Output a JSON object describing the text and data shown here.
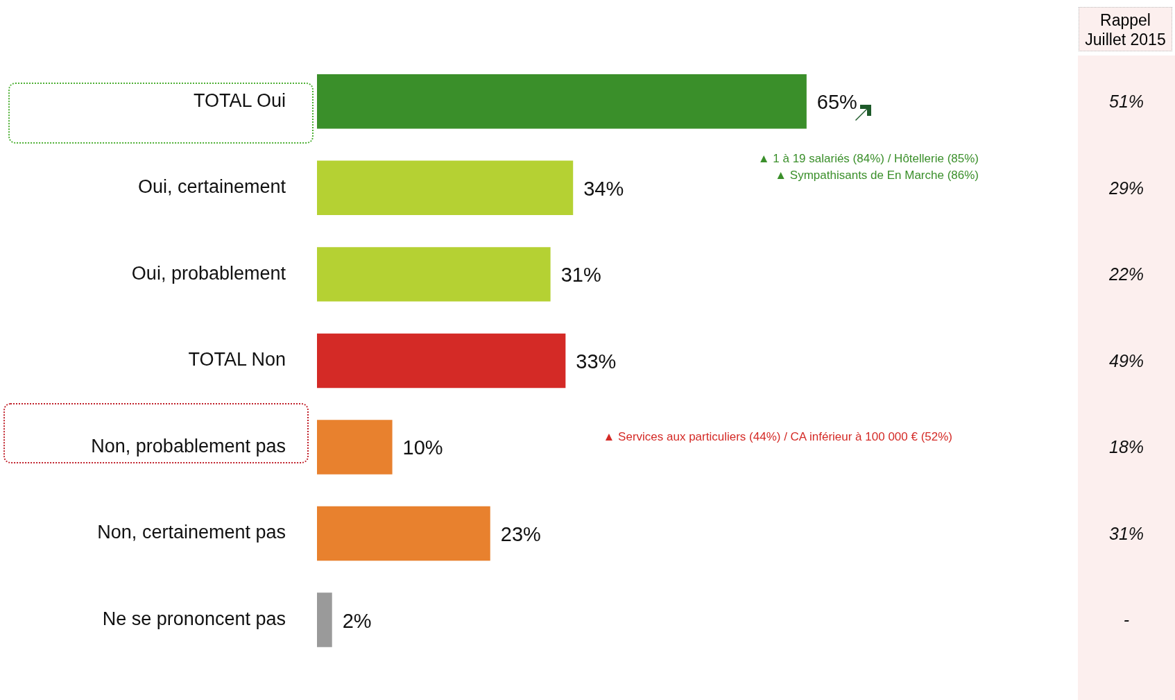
{
  "chart_data": {
    "type": "bar",
    "orientation": "horizontal",
    "data_labels": true,
    "legend": false,
    "grid": false,
    "tick_labels": "y",
    "categories": [
      "TOTAL Oui",
      "Oui, certainement",
      "Oui, probablement",
      "TOTAL Non",
      "Non, probablement pas",
      "Non, certainement pas",
      "Ne se prononcent pas"
    ],
    "values": [
      65,
      34,
      31,
      33,
      10,
      23,
      2
    ],
    "value_labels": [
      "65%",
      "34%",
      "31%",
      "33%",
      "10%",
      "23%",
      "2%"
    ],
    "colors": [
      "#3a8f2a",
      "#b5d133",
      "#b5d133",
      "#d42a26",
      "#e8812e",
      "#e8812e",
      "#9a9a9a"
    ],
    "annotations": [
      "Rappel Juillet 2015",
      "51%",
      "29%",
      "22%",
      "49%",
      "18%",
      "31%",
      "-",
      "▲ 1 à 19 salariés (84%) / Hôtellerie (85%)",
      "▲ Sympathisants de En Marche (86%)",
      "▲ Services aux particuliers (44%) / CA inférieur à 100 000 € (52%)"
    ]
  }
}
